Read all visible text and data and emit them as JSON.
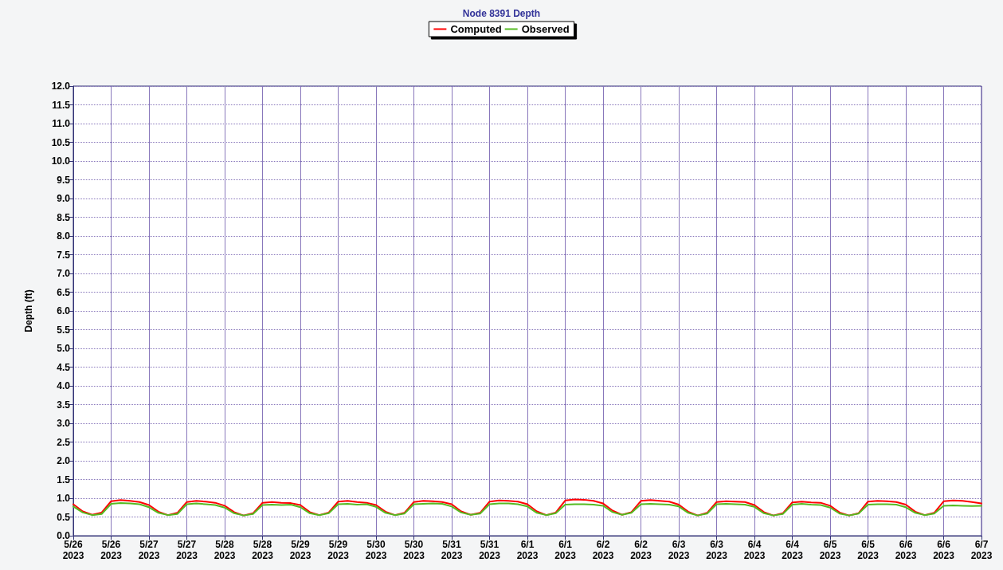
{
  "chart_data": {
    "type": "line",
    "title": "Node 8391 Depth",
    "ylabel": "Depth (ft)",
    "x": [
      "2023-05-26T00:00",
      "2023-05-26T03:00",
      "2023-05-26T06:00",
      "2023-05-26T09:00",
      "2023-05-26T12:00",
      "2023-05-26T15:00",
      "2023-05-26T18:00",
      "2023-05-26T21:00",
      "2023-05-27T00:00",
      "2023-05-27T03:00",
      "2023-05-27T06:00",
      "2023-05-27T09:00",
      "2023-05-27T12:00",
      "2023-05-27T15:00",
      "2023-05-27T18:00",
      "2023-05-27T21:00",
      "2023-05-28T00:00",
      "2023-05-28T03:00",
      "2023-05-28T06:00",
      "2023-05-28T09:00",
      "2023-05-28T12:00",
      "2023-05-28T15:00",
      "2023-05-28T18:00",
      "2023-05-28T21:00",
      "2023-05-29T00:00",
      "2023-05-29T03:00",
      "2023-05-29T06:00",
      "2023-05-29T09:00",
      "2023-05-29T12:00",
      "2023-05-29T15:00",
      "2023-05-29T18:00",
      "2023-05-29T21:00",
      "2023-05-30T00:00",
      "2023-05-30T03:00",
      "2023-05-30T06:00",
      "2023-05-30T09:00",
      "2023-05-30T12:00",
      "2023-05-30T15:00",
      "2023-05-30T18:00",
      "2023-05-30T21:00",
      "2023-05-31T00:00",
      "2023-05-31T03:00",
      "2023-05-31T06:00",
      "2023-05-31T09:00",
      "2023-05-31T12:00",
      "2023-05-31T15:00",
      "2023-05-31T18:00",
      "2023-05-31T21:00",
      "2023-06-01T00:00",
      "2023-06-01T03:00",
      "2023-06-01T06:00",
      "2023-06-01T09:00",
      "2023-06-01T12:00",
      "2023-06-01T15:00",
      "2023-06-01T18:00",
      "2023-06-01T21:00",
      "2023-06-02T00:00",
      "2023-06-02T03:00",
      "2023-06-02T06:00",
      "2023-06-02T09:00",
      "2023-06-02T12:00",
      "2023-06-02T15:00",
      "2023-06-02T18:00",
      "2023-06-02T21:00",
      "2023-06-03T00:00",
      "2023-06-03T03:00",
      "2023-06-03T06:00",
      "2023-06-03T09:00",
      "2023-06-03T12:00",
      "2023-06-03T15:00",
      "2023-06-03T18:00",
      "2023-06-03T21:00",
      "2023-06-04T00:00",
      "2023-06-04T03:00",
      "2023-06-04T06:00",
      "2023-06-04T09:00",
      "2023-06-04T12:00",
      "2023-06-04T15:00",
      "2023-06-04T18:00",
      "2023-06-04T21:00",
      "2023-06-05T00:00",
      "2023-06-05T03:00",
      "2023-06-05T06:00",
      "2023-06-05T09:00",
      "2023-06-05T12:00",
      "2023-06-05T15:00",
      "2023-06-05T18:00",
      "2023-06-05T21:00",
      "2023-06-06T00:00",
      "2023-06-06T03:00",
      "2023-06-06T06:00",
      "2023-06-06T09:00",
      "2023-06-06T12:00",
      "2023-06-06T15:00",
      "2023-06-06T18:00",
      "2023-06-06T21:00",
      "2023-06-07T00:00"
    ],
    "series": [
      {
        "name": "Computed",
        "color": "#ff0000",
        "values": [
          0.84,
          0.65,
          0.56,
          0.62,
          0.92,
          0.95,
          0.93,
          0.9,
          0.82,
          0.64,
          0.55,
          0.61,
          0.9,
          0.93,
          0.91,
          0.88,
          0.8,
          0.63,
          0.54,
          0.6,
          0.88,
          0.9,
          0.88,
          0.87,
          0.82,
          0.63,
          0.55,
          0.62,
          0.91,
          0.93,
          0.9,
          0.88,
          0.82,
          0.64,
          0.55,
          0.61,
          0.9,
          0.93,
          0.92,
          0.9,
          0.84,
          0.65,
          0.56,
          0.61,
          0.91,
          0.94,
          0.93,
          0.91,
          0.84,
          0.65,
          0.55,
          0.62,
          0.94,
          0.97,
          0.96,
          0.93,
          0.86,
          0.67,
          0.56,
          0.63,
          0.93,
          0.95,
          0.93,
          0.91,
          0.83,
          0.64,
          0.54,
          0.61,
          0.9,
          0.92,
          0.91,
          0.9,
          0.82,
          0.63,
          0.54,
          0.6,
          0.89,
          0.91,
          0.89,
          0.88,
          0.8,
          0.62,
          0.54,
          0.6,
          0.91,
          0.93,
          0.92,
          0.9,
          0.83,
          0.64,
          0.55,
          0.61,
          0.92,
          0.94,
          0.93,
          0.9,
          0.86
        ]
      },
      {
        "name": "Observed",
        "color": "#55bb22",
        "values": [
          0.78,
          0.62,
          0.55,
          0.58,
          0.85,
          0.87,
          0.86,
          0.84,
          0.76,
          0.61,
          0.55,
          0.58,
          0.84,
          0.86,
          0.84,
          0.82,
          0.75,
          0.6,
          0.54,
          0.58,
          0.82,
          0.83,
          0.82,
          0.83,
          0.76,
          0.6,
          0.55,
          0.6,
          0.84,
          0.85,
          0.83,
          0.84,
          0.77,
          0.61,
          0.55,
          0.59,
          0.84,
          0.85,
          0.86,
          0.85,
          0.78,
          0.62,
          0.56,
          0.59,
          0.84,
          0.86,
          0.86,
          0.84,
          0.78,
          0.61,
          0.55,
          0.6,
          0.83,
          0.84,
          0.84,
          0.83,
          0.8,
          0.63,
          0.56,
          0.61,
          0.84,
          0.85,
          0.84,
          0.83,
          0.78,
          0.61,
          0.54,
          0.59,
          0.84,
          0.85,
          0.84,
          0.83,
          0.77,
          0.6,
          0.54,
          0.58,
          0.83,
          0.85,
          0.83,
          0.82,
          0.75,
          0.59,
          0.54,
          0.59,
          0.83,
          0.84,
          0.84,
          0.83,
          0.76,
          0.61,
          0.55,
          0.59,
          0.8,
          0.81,
          0.8,
          0.79,
          0.8
        ]
      }
    ],
    "xlim": [
      "2023-05-26T00:00",
      "2023-06-07T00:00"
    ],
    "xticks": [
      {
        "value": "2023-05-26T00:00",
        "label": "5/26\n2023"
      },
      {
        "value": "2023-05-26T12:00",
        "label": "5/26\n2023"
      },
      {
        "value": "2023-05-27T00:00",
        "label": "5/27\n2023"
      },
      {
        "value": "2023-05-27T12:00",
        "label": "5/27\n2023"
      },
      {
        "value": "2023-05-28T00:00",
        "label": "5/28\n2023"
      },
      {
        "value": "2023-05-28T12:00",
        "label": "5/28\n2023"
      },
      {
        "value": "2023-05-29T00:00",
        "label": "5/29\n2023"
      },
      {
        "value": "2023-05-29T12:00",
        "label": "5/29\n2023"
      },
      {
        "value": "2023-05-30T00:00",
        "label": "5/30\n2023"
      },
      {
        "value": "2023-05-30T12:00",
        "label": "5/30\n2023"
      },
      {
        "value": "2023-05-31T00:00",
        "label": "5/31\n2023"
      },
      {
        "value": "2023-05-31T12:00",
        "label": "5/31\n2023"
      },
      {
        "value": "2023-06-01T00:00",
        "label": "6/1\n2023"
      },
      {
        "value": "2023-06-01T12:00",
        "label": "6/1\n2023"
      },
      {
        "value": "2023-06-02T00:00",
        "label": "6/2\n2023"
      },
      {
        "value": "2023-06-02T12:00",
        "label": "6/2\n2023"
      },
      {
        "value": "2023-06-03T00:00",
        "label": "6/3\n2023"
      },
      {
        "value": "2023-06-03T12:00",
        "label": "6/3\n2023"
      },
      {
        "value": "2023-06-04T00:00",
        "label": "6/4\n2023"
      },
      {
        "value": "2023-06-04T12:00",
        "label": "6/4\n2023"
      },
      {
        "value": "2023-06-05T00:00",
        "label": "6/5\n2023"
      },
      {
        "value": "2023-06-05T12:00",
        "label": "6/5\n2023"
      },
      {
        "value": "2023-06-06T00:00",
        "label": "6/6\n2023"
      },
      {
        "value": "2023-06-06T12:00",
        "label": "6/6\n2023"
      },
      {
        "value": "2023-06-07T00:00",
        "label": "6/7\n2023"
      }
    ],
    "ylim": [
      0,
      12
    ],
    "yticks": [
      {
        "value": 0,
        "label": "0.0"
      },
      {
        "value": 0.5,
        "label": "0.5"
      },
      {
        "value": 1,
        "label": "1.0"
      },
      {
        "value": 1.5,
        "label": "1.5"
      },
      {
        "value": 2,
        "label": "2.0"
      },
      {
        "value": 2.5,
        "label": "2.5"
      },
      {
        "value": 3,
        "label": "3.0"
      },
      {
        "value": 3.5,
        "label": "3.5"
      },
      {
        "value": 4,
        "label": "4.0"
      },
      {
        "value": 4.5,
        "label": "4.5"
      },
      {
        "value": 5,
        "label": "5.0"
      },
      {
        "value": 5.5,
        "label": "5.5"
      },
      {
        "value": 6,
        "label": "6.0"
      },
      {
        "value": 6.5,
        "label": "6.5"
      },
      {
        "value": 7,
        "label": "7.0"
      },
      {
        "value": 7.5,
        "label": "7.5"
      },
      {
        "value": 8,
        "label": "8.0"
      },
      {
        "value": 8.5,
        "label": "8.5"
      },
      {
        "value": 9,
        "label": "9.0"
      },
      {
        "value": 9.5,
        "label": "9.5"
      },
      {
        "value": 10,
        "label": "10.0"
      },
      {
        "value": 10.5,
        "label": "10.5"
      },
      {
        "value": 11,
        "label": "11.0"
      },
      {
        "value": 11.5,
        "label": "11.5"
      },
      {
        "value": 12,
        "label": "12.0"
      }
    ],
    "grid": true,
    "legend": "top",
    "marker": "none",
    "line_style": "solid"
  }
}
